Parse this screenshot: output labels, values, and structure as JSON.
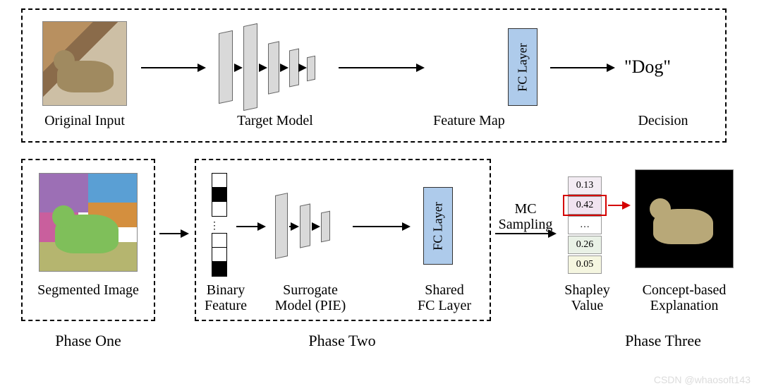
{
  "top": {
    "input_label": "Original Input",
    "model_label": "Target Model",
    "fc_label": "FC Layer",
    "fmap_label": "Feature Map",
    "decision_label": "Decision",
    "decision_text": "\"Dog\""
  },
  "bottom": {
    "seg_label": "Segmented Image",
    "bin_label": "Binary\nFeature",
    "bin_label_l1": "Binary",
    "bin_label_l2": "Feature",
    "surr_label_l1": "Surrogate",
    "surr_label_l2": "Model (PIE)",
    "shared_fc_l1": "Shared",
    "shared_fc_l2": "FC Layer",
    "mc_l1": "MC",
    "mc_l2": "Sampling",
    "shap_label_l1": "Shapley",
    "shap_label_l2": "Value",
    "expl_label_l1": "Concept-based",
    "expl_label_l2": "Explanation",
    "phase1": "Phase One",
    "phase2": "Phase Two",
    "phase3": "Phase Three",
    "shap_values": [
      "0.13",
      "0.42",
      "…",
      "0.26",
      "0.05"
    ],
    "shap_colors": [
      "#f3ecf3",
      "#f1e3f0",
      "#ffffff",
      "#e9f1e6",
      "#f5f6e0"
    ],
    "highlight_index": 1
  },
  "colors": {
    "fc_fill": "#aecbeb",
    "plate_fill": "#d9d9d9",
    "red": "#d40000",
    "expl_bg": "#000000"
  },
  "seg_palette": [
    "#9c6fb5",
    "#7fbf5a",
    "#5a9fd4",
    "#d48f3e",
    "#c95f9d",
    "#6fb59c",
    "#b5b56f",
    "#5f6fc9"
  ],
  "watermark": "CSDN @whaosoft143"
}
